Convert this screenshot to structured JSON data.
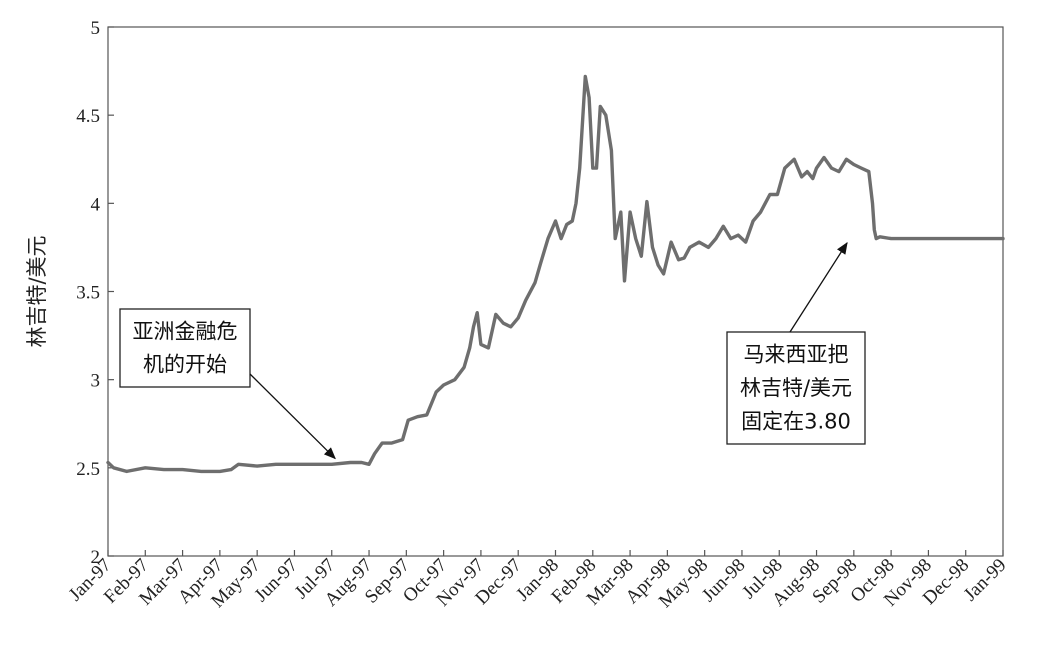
{
  "chart_data": {
    "type": "line",
    "title": "",
    "xlabel": "",
    "ylabel": "林吉特/美元",
    "ylim": [
      2,
      5
    ],
    "yticks": [
      "2",
      "2.5",
      "3",
      "3.5",
      "4",
      "4.5",
      "5"
    ],
    "xticks": [
      "Jan-97",
      "Feb-97",
      "Mar-97",
      "Apr-97",
      "May-97",
      "Jun-97",
      "Jul-97",
      "Aug-97",
      "Sep-97",
      "Oct-97",
      "Nov-97",
      "Dec-97",
      "Jan-98",
      "Feb-98",
      "Mar-98",
      "Apr-98",
      "May-98",
      "Jun-98",
      "Jul-98",
      "Aug-98",
      "Sep-98",
      "Oct-98",
      "Nov-98",
      "Dec-98",
      "Jan-99"
    ],
    "grid": false,
    "line_color": "#6e6e6e",
    "series": [
      {
        "x": [
          0,
          0.15,
          0.5,
          1.0,
          1.5,
          2.0,
          2.5,
          3.0,
          3.3,
          3.5,
          4.0,
          4.5,
          5.0,
          5.5,
          6.0,
          6.5,
          6.8,
          7.0,
          7.15,
          7.35,
          7.6,
          7.9,
          8.05,
          8.3,
          8.55,
          8.8,
          9.0,
          9.3,
          9.55,
          9.7,
          9.8,
          9.9,
          10.0,
          10.2,
          10.4,
          10.6,
          10.8,
          11.0,
          11.2,
          11.45,
          11.6,
          11.8,
          12.0,
          12.15,
          12.3,
          12.45,
          12.55,
          12.65,
          12.8,
          12.9,
          13.0,
          13.1,
          13.2,
          13.35,
          13.5,
          13.6,
          13.75,
          13.85,
          14.0,
          14.15,
          14.3,
          14.45,
          14.6,
          14.75,
          14.9,
          15.1,
          15.3,
          15.45,
          15.6,
          15.85,
          16.1,
          16.3,
          16.5,
          16.7,
          16.9,
          17.1,
          17.3,
          17.5,
          17.75,
          17.95,
          18.15,
          18.4,
          18.6,
          18.75,
          18.9,
          19.0,
          19.2,
          19.4,
          19.6,
          19.8,
          20.0,
          20.2,
          20.4,
          20.5,
          20.55,
          20.6,
          20.7,
          21.0,
          21.5,
          22.0,
          22.5,
          23.0,
          23.5,
          24.0
        ],
        "y": [
          2.53,
          2.5,
          2.48,
          2.5,
          2.49,
          2.49,
          2.48,
          2.48,
          2.49,
          2.52,
          2.51,
          2.52,
          2.52,
          2.52,
          2.52,
          2.53,
          2.53,
          2.52,
          2.58,
          2.64,
          2.64,
          2.66,
          2.77,
          2.79,
          2.8,
          2.93,
          2.97,
          3.0,
          3.07,
          3.18,
          3.3,
          3.38,
          3.2,
          3.18,
          3.37,
          3.32,
          3.3,
          3.35,
          3.45,
          3.55,
          3.66,
          3.8,
          3.9,
          3.8,
          3.88,
          3.9,
          4.0,
          4.2,
          4.72,
          4.6,
          4.2,
          4.2,
          4.55,
          4.5,
          4.3,
          3.8,
          3.95,
          3.56,
          3.95,
          3.8,
          3.7,
          4.01,
          3.75,
          3.65,
          3.6,
          3.78,
          3.68,
          3.69,
          3.75,
          3.78,
          3.75,
          3.8,
          3.87,
          3.8,
          3.82,
          3.78,
          3.9,
          3.95,
          4.05,
          4.05,
          4.2,
          4.25,
          4.15,
          4.18,
          4.14,
          4.2,
          4.26,
          4.2,
          4.18,
          4.25,
          4.22,
          4.2,
          4.18,
          4.0,
          3.85,
          3.8,
          3.81,
          3.8,
          3.8,
          3.8,
          3.8,
          3.8,
          3.8,
          3.8
        ]
      }
    ],
    "annotations": [
      {
        "lines": [
          "亚洲金融危",
          "机的开始"
        ],
        "points_to": {
          "x": 6.2,
          "y": 2.53
        }
      },
      {
        "lines": [
          "马来西亚把",
          "林吉特/美元",
          "固定在3.80"
        ],
        "points_to": {
          "x": 19.9,
          "y": 3.81
        }
      }
    ]
  }
}
